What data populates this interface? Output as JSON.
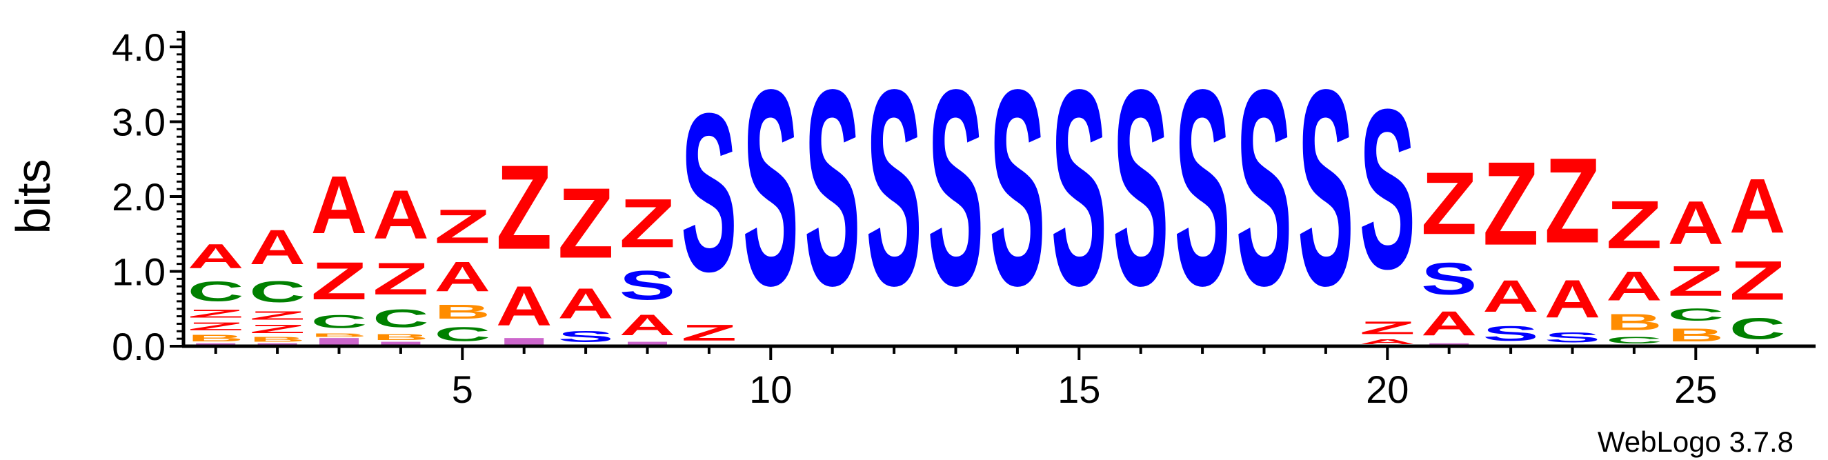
{
  "chart_data": {
    "type": "sequence-logo",
    "ylabel": "bits",
    "ylim": [
      0,
      4.2
    ],
    "y_ticks": [
      "0.0",
      "1.0",
      "2.0",
      "3.0",
      "4.0"
    ],
    "x_tick_values": [
      5,
      10,
      15,
      20,
      25
    ],
    "x_tick_labels": [
      "5",
      "10",
      "15",
      "20",
      "25"
    ],
    "colors": {
      "A": "#ff0000",
      "Z": "#ff0000",
      "S": "#0000ff",
      "C": "#008000",
      "B": "#ff8c00",
      "minor": "#cc66cc"
    },
    "positions": [
      {
        "pos": 1,
        "stack": [
          [
            "o",
            0.03
          ],
          [
            "B",
            0.14
          ],
          [
            "Z",
            0.17
          ],
          [
            "Z",
            0.17
          ],
          [
            "C",
            0.42
          ],
          [
            "A",
            0.52
          ]
        ]
      },
      {
        "pos": 2,
        "stack": [
          [
            "o",
            0.03
          ],
          [
            "B",
            0.1
          ],
          [
            "Z",
            0.18
          ],
          [
            "Z",
            0.18
          ],
          [
            "C",
            0.45
          ],
          [
            "A",
            0.74
          ]
        ]
      },
      {
        "pos": 3,
        "stack": [
          [
            "o",
            0.1
          ],
          [
            "B",
            0.08
          ],
          [
            "C",
            0.28
          ],
          [
            "Z",
            0.8
          ],
          [
            "A",
            1.23
          ]
        ]
      },
      {
        "pos": 4,
        "stack": [
          [
            "o",
            0.05
          ],
          [
            "B",
            0.12
          ],
          [
            "C",
            0.38
          ],
          [
            "Z",
            0.68
          ],
          [
            "A",
            1.03
          ]
        ]
      },
      {
        "pos": 5,
        "stack": [
          [
            "C",
            0.3
          ],
          [
            "B",
            0.3
          ],
          [
            "A",
            0.63
          ],
          [
            "Z",
            0.72
          ]
        ]
      },
      {
        "pos": 6,
        "stack": [
          [
            "o",
            0.1
          ],
          [
            "A",
            0.84
          ],
          [
            "Z",
            1.8
          ]
        ]
      },
      {
        "pos": 7,
        "stack": [
          [
            "S",
            0.24
          ],
          [
            "A",
            0.64
          ],
          [
            "Z",
            1.5
          ]
        ]
      },
      {
        "pos": 8,
        "stack": [
          [
            "o",
            0.05
          ],
          [
            "A",
            0.44
          ],
          [
            "S",
            0.62
          ],
          [
            "Z",
            1.04
          ]
        ]
      },
      {
        "pos": 9,
        "stack": [
          [
            "Z",
            0.34
          ],
          [
            "S",
            3.38
          ]
        ]
      },
      {
        "pos": 10,
        "stack": [
          [
            "S",
            4.18
          ]
        ]
      },
      {
        "pos": 11,
        "stack": [
          [
            "S",
            4.18
          ]
        ]
      },
      {
        "pos": 12,
        "stack": [
          [
            "S",
            4.18
          ]
        ]
      },
      {
        "pos": 13,
        "stack": [
          [
            "S",
            4.18
          ]
        ]
      },
      {
        "pos": 14,
        "stack": [
          [
            "S",
            4.18
          ]
        ]
      },
      {
        "pos": 15,
        "stack": [
          [
            "S",
            4.18
          ]
        ]
      },
      {
        "pos": 16,
        "stack": [
          [
            "S",
            4.18
          ]
        ]
      },
      {
        "pos": 17,
        "stack": [
          [
            "S",
            4.18
          ]
        ]
      },
      {
        "pos": 18,
        "stack": [
          [
            "S",
            4.18
          ]
        ]
      },
      {
        "pos": 19,
        "stack": [
          [
            "S",
            4.18
          ]
        ]
      },
      {
        "pos": 20,
        "stack": [
          [
            "A",
            0.1
          ],
          [
            "Z",
            0.27
          ],
          [
            "S",
            3.41
          ]
        ]
      },
      {
        "pos": 21,
        "stack": [
          [
            "o",
            0.03
          ],
          [
            "A",
            0.52
          ],
          [
            "S",
            0.68
          ],
          [
            "Z",
            1.33
          ]
        ]
      },
      {
        "pos": 22,
        "stack": [
          [
            "S",
            0.32
          ],
          [
            "A",
            0.68
          ],
          [
            "Z",
            1.78
          ]
        ]
      },
      {
        "pos": 23,
        "stack": [
          [
            "S",
            0.22
          ],
          [
            "A",
            0.8
          ],
          [
            "Z",
            1.82
          ]
        ]
      },
      {
        "pos": 24,
        "stack": [
          [
            "C",
            0.14
          ],
          [
            "B",
            0.34
          ],
          [
            "A",
            0.62
          ],
          [
            "Z",
            1.02
          ]
        ]
      },
      {
        "pos": 25,
        "stack": [
          [
            "B",
            0.28
          ],
          [
            "C",
            0.26
          ],
          [
            "Z",
            0.64
          ],
          [
            "A",
            0.92
          ]
        ]
      },
      {
        "pos": 26,
        "stack": [
          [
            "C",
            0.45
          ],
          [
            "Z",
            0.83
          ],
          [
            "A",
            1.16
          ]
        ]
      }
    ]
  },
  "footer": {
    "credit": "WebLogo 3.7.8"
  }
}
